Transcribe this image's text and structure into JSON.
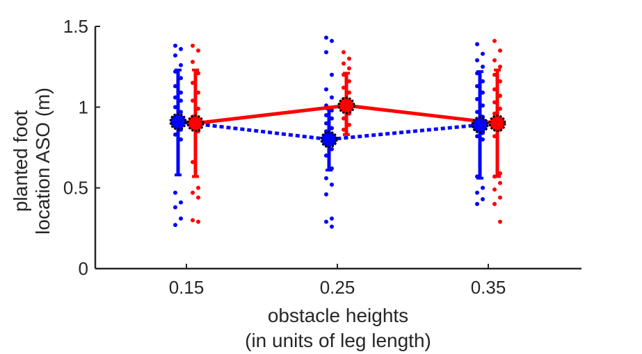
{
  "chart_data": {
    "type": "scatter",
    "title": "",
    "xlabel_lines": [
      "obstacle heights",
      "(in units of leg length)"
    ],
    "ylabel_lines": [
      "planted foot",
      "location ASO (m)"
    ],
    "x_ticks": [
      "0.15",
      "0.25",
      "0.35"
    ],
    "y_ticks": [
      "0",
      "0.5",
      "1",
      "1.5"
    ],
    "ylim": [
      0,
      1.5
    ],
    "grid": false,
    "legend": "none",
    "colors": {
      "blue": "#0000ff",
      "red": "#ff0000",
      "marker_edge": "#000000",
      "axis": "#262626"
    },
    "series": [
      {
        "color": "blue",
        "line_style": "dotted",
        "mean": [
          0.91,
          0.8,
          0.89
        ],
        "error_low": [
          0.58,
          0.61,
          0.56
        ],
        "error_high": [
          1.23,
          0.99,
          1.22
        ],
        "points": [
          [
            1.38,
            1.36,
            1.32,
            1.26,
            1.22,
            1.18,
            1.13,
            1.09,
            1.06,
            1.04,
            1.0,
            0.97,
            0.94,
            0.91,
            0.88,
            0.86,
            0.83,
            0.8,
            0.47,
            0.41,
            0.38,
            0.31,
            0.27
          ],
          [
            1.43,
            1.41,
            1.34,
            1.2,
            1.11,
            1.06,
            1.01,
            0.98,
            0.95,
            0.93,
            0.9,
            0.87,
            0.85,
            0.83,
            0.81,
            0.79,
            0.77,
            0.74,
            0.7,
            0.62,
            0.56,
            0.52,
            0.46,
            0.31,
            0.29,
            0.26
          ],
          [
            1.39,
            1.33,
            1.29,
            1.25,
            1.21,
            1.16,
            1.13,
            1.09,
            1.05,
            1.01,
            0.97,
            0.94,
            0.91,
            0.88,
            0.86,
            0.84,
            0.82,
            0.8,
            0.57,
            0.5,
            0.47,
            0.43,
            0.4
          ]
        ]
      },
      {
        "color": "red",
        "line_style": "solid",
        "mean": [
          0.9,
          1.01,
          0.9
        ],
        "error_low": [
          0.57,
          0.83,
          0.57
        ],
        "error_high": [
          1.23,
          1.21,
          1.23
        ],
        "points": [
          [
            1.38,
            1.35,
            1.28,
            1.21,
            1.15,
            1.09,
            1.04,
            0.99,
            0.94,
            0.91,
            0.88,
            0.85,
            0.66,
            0.5,
            0.47,
            0.44,
            0.3,
            0.29
          ],
          [
            1.34,
            1.3,
            1.27,
            1.24,
            1.2,
            1.16,
            1.12,
            1.09,
            1.05,
            1.02,
            0.99,
            0.96,
            0.93,
            0.89,
            0.86
          ],
          [
            1.41,
            1.35,
            1.29,
            1.25,
            1.2,
            1.16,
            1.11,
            1.07,
            1.03,
            0.99,
            0.96,
            0.93,
            0.89,
            0.86,
            0.82,
            0.59,
            0.57,
            0.53,
            0.49,
            0.44,
            0.4,
            0.29
          ]
        ]
      }
    ]
  }
}
